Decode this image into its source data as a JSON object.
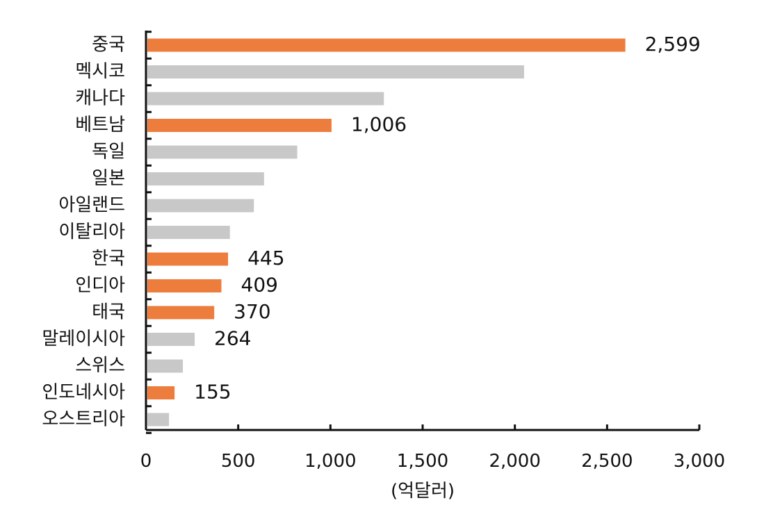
{
  "chart_data": {
    "type": "bar",
    "orientation": "horizontal",
    "categories": [
      "중국",
      "멕시코",
      "캐나다",
      "베트남",
      "독일",
      "일본",
      "아일랜드",
      "이탈리아",
      "한국",
      "인디아",
      "태국",
      "말레이시아",
      "스위스",
      "인도네시아",
      "오스트리아"
    ],
    "values": [
      2599,
      2050,
      1290,
      1006,
      820,
      640,
      585,
      455,
      445,
      409,
      370,
      264,
      200,
      155,
      125
    ],
    "highlighted": [
      true,
      false,
      false,
      true,
      false,
      false,
      false,
      false,
      true,
      true,
      true,
      false,
      false,
      true,
      false
    ],
    "data_labels": [
      "2,599",
      "",
      "",
      "1,006",
      "",
      "",
      "",
      "",
      "445",
      "409",
      "370",
      "264",
      "",
      "155",
      ""
    ],
    "xlim": [
      0,
      3000
    ],
    "xticks": [
      0,
      500,
      1000,
      1500,
      2000,
      2500,
      3000
    ],
    "xtick_labels": [
      "0",
      "500",
      "1,000",
      "1,500",
      "2,000",
      "2,500",
      "3,000"
    ],
    "xlabel": "(억달러)",
    "ylabel": "",
    "title": "",
    "grid": false,
    "legend": "none",
    "colors": {
      "highlight": "#ED7D3D",
      "default": "#C8C8C8",
      "axis": "#111111"
    }
  }
}
